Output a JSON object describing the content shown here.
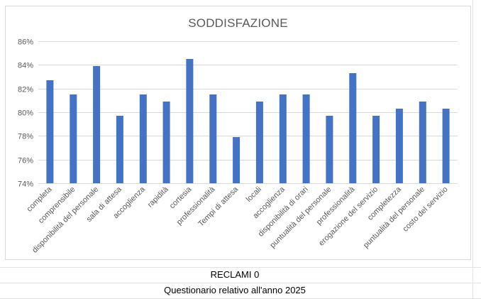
{
  "sheet": {
    "footer_line1": "RECLAMI 0",
    "footer_line2": "Questionario relativo all'anno 2025"
  },
  "chart_data": {
    "type": "bar",
    "title": "SODDISFAZIONE",
    "xlabel": "",
    "ylabel": "",
    "ylim": [
      74,
      86
    ],
    "y_ticks": [
      74,
      76,
      78,
      80,
      82,
      84,
      86
    ],
    "y_tick_labels": [
      "74%",
      "76%",
      "78%",
      "80%",
      "82%",
      "84%",
      "86%"
    ],
    "grid": true,
    "legend": "none",
    "bar_color": "#4472C4",
    "categories": [
      "completa",
      "comprensibile",
      "disponibilità del personale",
      "sala di attesa",
      "accoglienza",
      "rapidità",
      "cortesia",
      "professionalità",
      "Tempi di attesa",
      "locali",
      "accoglienza",
      "disponibilità di orari",
      "puntualità del personale",
      "professionalità",
      "erogazione del servizio",
      "completezza",
      "puntualità del personale",
      "costo del servizio"
    ],
    "values": [
      82.7,
      81.5,
      83.9,
      79.7,
      81.5,
      80.9,
      84.5,
      81.5,
      77.9,
      80.9,
      81.5,
      81.5,
      79.7,
      83.3,
      79.7,
      80.3,
      80.9,
      80.3
    ]
  }
}
